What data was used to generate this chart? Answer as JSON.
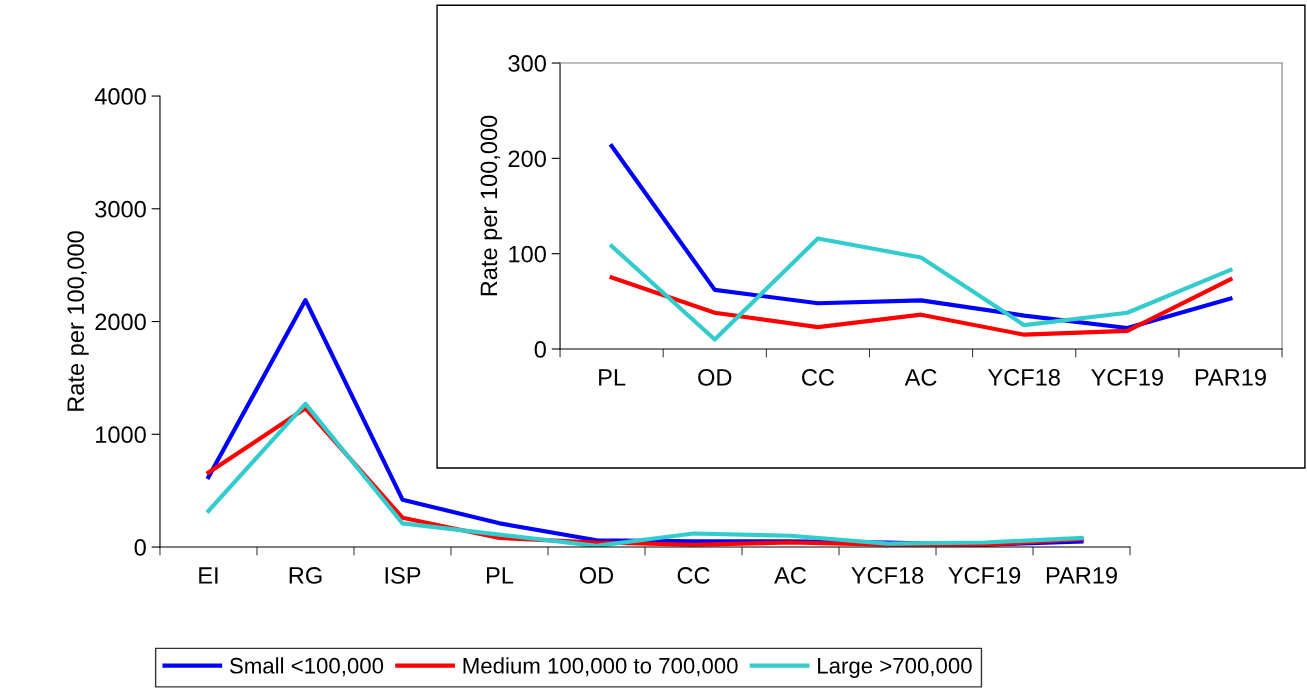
{
  "chart_data": [
    {
      "type": "line",
      "ylabel": "Rate per 100,000",
      "categories": [
        "EI",
        "RG",
        "ISP",
        "PL",
        "OD",
        "CC",
        "AC",
        "YCF18",
        "YCF19",
        "PAR19"
      ],
      "ylim": [
        0,
        4000
      ],
      "yticks": [
        0,
        1000,
        2000,
        3000,
        4000
      ],
      "grid": false,
      "legend": "bottom",
      "marker": "none",
      "line_style": "solid",
      "series": [
        {
          "name": "Small <100,000",
          "color": "#0000ff",
          "values": [
            620,
            2190,
            420,
            210,
            60,
            50,
            50,
            40,
            20,
            50
          ]
        },
        {
          "name": "Medium 100,000 to 700,000",
          "color": "#ff0000",
          "values": [
            660,
            1230,
            260,
            80,
            40,
            20,
            40,
            20,
            20,
            70
          ]
        },
        {
          "name": "Large >700,000",
          "color": "#33cccc",
          "values": [
            320,
            1270,
            210,
            110,
            10,
            120,
            100,
            30,
            40,
            80
          ]
        }
      ]
    },
    {
      "type": "line",
      "ylabel": "Rate per 100,000",
      "categories": [
        "PL",
        "OD",
        "CC",
        "AC",
        "YCF18",
        "YCF19",
        "PAR19"
      ],
      "ylim": [
        0,
        300
      ],
      "yticks": [
        0,
        100,
        200,
        300
      ],
      "grid": false,
      "marker": "none",
      "line_style": "solid",
      "series": [
        {
          "color": "#0000ff",
          "values": [
            213,
            62,
            48,
            51,
            35,
            22,
            53
          ]
        },
        {
          "color": "#ff0000",
          "values": [
            75,
            38,
            23,
            36,
            15,
            19,
            73
          ]
        },
        {
          "color": "#33cccc",
          "values": [
            108,
            10,
            116,
            96,
            25,
            38,
            83
          ]
        }
      ]
    }
  ]
}
